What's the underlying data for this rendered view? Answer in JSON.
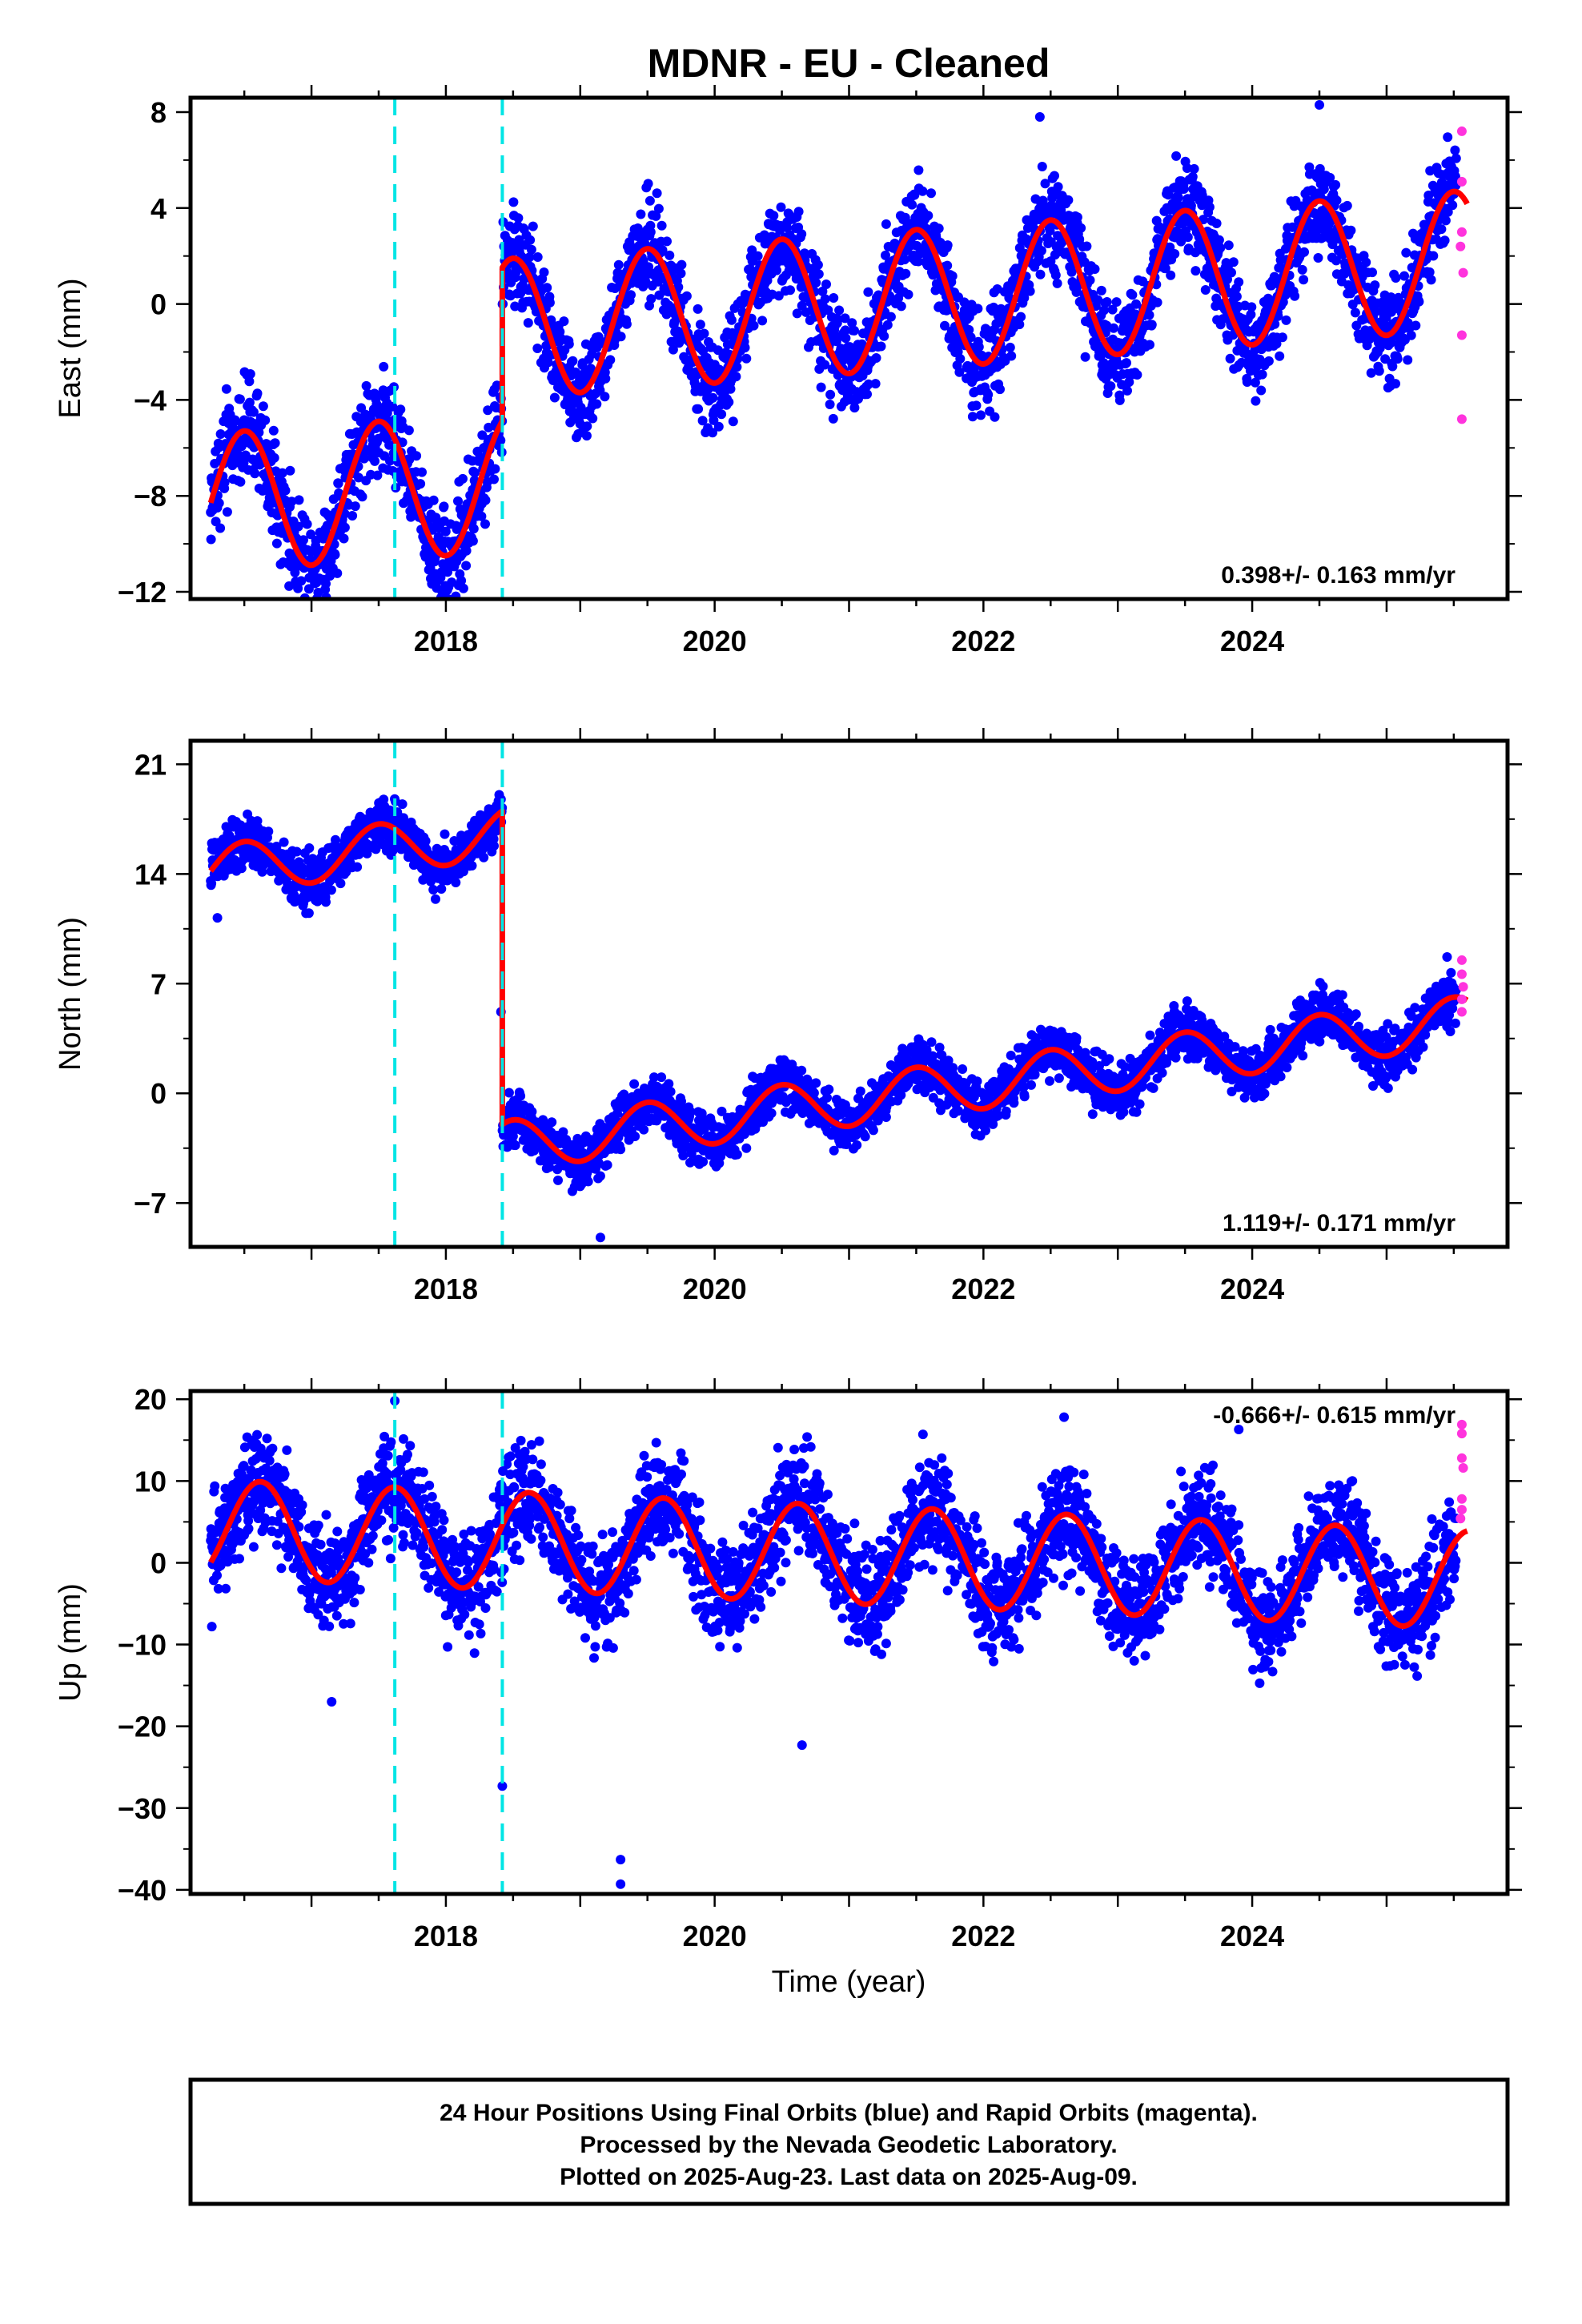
{
  "title": "MDNR  - EU - Cleaned",
  "xlabel": "Time (year)",
  "footer": [
    "24 Hour Positions Using Final Orbits (blue) and Rapid Orbits (magenta).",
    "Processed by the Nevada Geodetic Laboratory.",
    "Plotted on 2025-Aug-23. Last data on 2025-Aug-09."
  ],
  "colors": {
    "final": "#0000ff",
    "rapid": "#ff33dd",
    "model": "#ff0000",
    "break": "#00e5e5"
  },
  "chart_data": [
    {
      "type": "scatter",
      "ylabel": "East (mm)",
      "rate_text": "0.398+/- 0.163 mm/yr",
      "xlim": [
        2016.1,
        2025.9
      ],
      "ylim": [
        -12.3,
        8.6
      ],
      "yticks": [
        8,
        4,
        0,
        -4,
        -8,
        -12
      ],
      "yticklabels": [
        "8",
        "4",
        "0",
        "−4",
        "−8",
        "−12"
      ],
      "xticks": [
        2018,
        2020,
        2022,
        2024
      ],
      "breaks": [
        2017.62,
        2018.42
      ],
      "model": {
        "trend": 0.398,
        "t_ref": 2021.0,
        "seasonal": 2.9,
        "phase_peak": 0.5,
        "segments": [
          {
            "start": 2016.25,
            "end": 2018.42,
            "offset": -6.4
          },
          {
            "start": 2018.42,
            "end": 2025.6,
            "offset": 0.0
          }
        ]
      },
      "points_start": 2016.25,
      "points_end": 2025.52,
      "noise": 1.0,
      "outliers": [
        [
          2022.42,
          7.8
        ],
        [
          2024.5,
          8.3
        ],
        [
          2018.02,
          -11.8
        ]
      ],
      "rapid": [
        [
          2025.56,
          7.2
        ],
        [
          2025.56,
          5.1
        ],
        [
          2025.56,
          3.0
        ],
        [
          2025.57,
          1.3
        ],
        [
          2025.56,
          -1.3
        ],
        [
          2025.56,
          -4.8
        ],
        [
          2025.55,
          2.4
        ]
      ]
    },
    {
      "type": "scatter",
      "ylabel": "North (mm)",
      "rate_text": "1.119+/- 0.171 mm/yr",
      "xlim": [
        2016.1,
        2025.9
      ],
      "ylim": [
        -9.8,
        22.5
      ],
      "yticks": [
        21,
        14,
        7,
        0,
        -7
      ],
      "yticklabels": [
        "21",
        "14",
        "7",
        "0",
        "−7"
      ],
      "xticks": [
        2018,
        2020,
        2022,
        2024
      ],
      "breaks": [
        2017.62,
        2018.42
      ],
      "model": {
        "trend": 1.119,
        "t_ref": 2021.0,
        "seasonal": 1.6,
        "phase_peak": 0.5,
        "segments": [
          {
            "start": 2016.25,
            "end": 2018.42,
            "offset": 19.5
          },
          {
            "start": 2018.42,
            "end": 2025.6,
            "offset": -0.5
          }
        ]
      },
      "points_start": 2016.25,
      "points_end": 2025.52,
      "noise": 0.8,
      "outliers": [
        [
          2018.41,
          5.2
        ],
        [
          2019.15,
          -9.2
        ],
        [
          2016.3,
          11.2
        ],
        [
          2025.45,
          8.7
        ]
      ],
      "rapid": [
        [
          2025.56,
          8.5
        ],
        [
          2025.56,
          7.6
        ],
        [
          2025.57,
          6.8
        ],
        [
          2025.56,
          6.0
        ],
        [
          2025.56,
          5.2
        ]
      ]
    },
    {
      "type": "scatter",
      "ylabel": "Up (mm)",
      "rate_text": "-0.666+/- 0.615 mm/yr",
      "xlim": [
        2016.1,
        2025.9
      ],
      "ylim": [
        -40.5,
        21.0
      ],
      "yticks": [
        20,
        10,
        0,
        -10,
        -20,
        -30,
        -40
      ],
      "yticklabels": [
        "20",
        "10",
        "0",
        "−10",
        "−20",
        "−30",
        "−40"
      ],
      "xticks": [
        2018,
        2020,
        2022,
        2024
      ],
      "breaks": [
        2017.62,
        2018.42
      ],
      "model": {
        "trend": -0.666,
        "t_ref": 2021.0,
        "seasonal": 6.0,
        "phase_peak": 0.62,
        "segments": [
          {
            "start": 2016.25,
            "end": 2025.6,
            "offset": 1.0
          }
        ]
      },
      "points_start": 2016.25,
      "points_end": 2025.52,
      "noise": 3.2,
      "outliers": [
        [
          2017.62,
          19.8
        ],
        [
          2018.42,
          -27.3
        ],
        [
          2019.3,
          -36.3
        ],
        [
          2019.3,
          -39.3
        ],
        [
          2020.65,
          -22.3
        ],
        [
          2017.15,
          -17.0
        ],
        [
          2023.9,
          16.3
        ],
        [
          2021.55,
          15.7
        ],
        [
          2022.6,
          17.8
        ]
      ],
      "rapid": [
        [
          2025.56,
          16.9
        ],
        [
          2025.56,
          15.8
        ],
        [
          2025.56,
          12.8
        ],
        [
          2025.57,
          11.6
        ],
        [
          2025.56,
          7.8
        ],
        [
          2025.56,
          6.5
        ],
        [
          2025.55,
          5.4
        ]
      ]
    }
  ]
}
